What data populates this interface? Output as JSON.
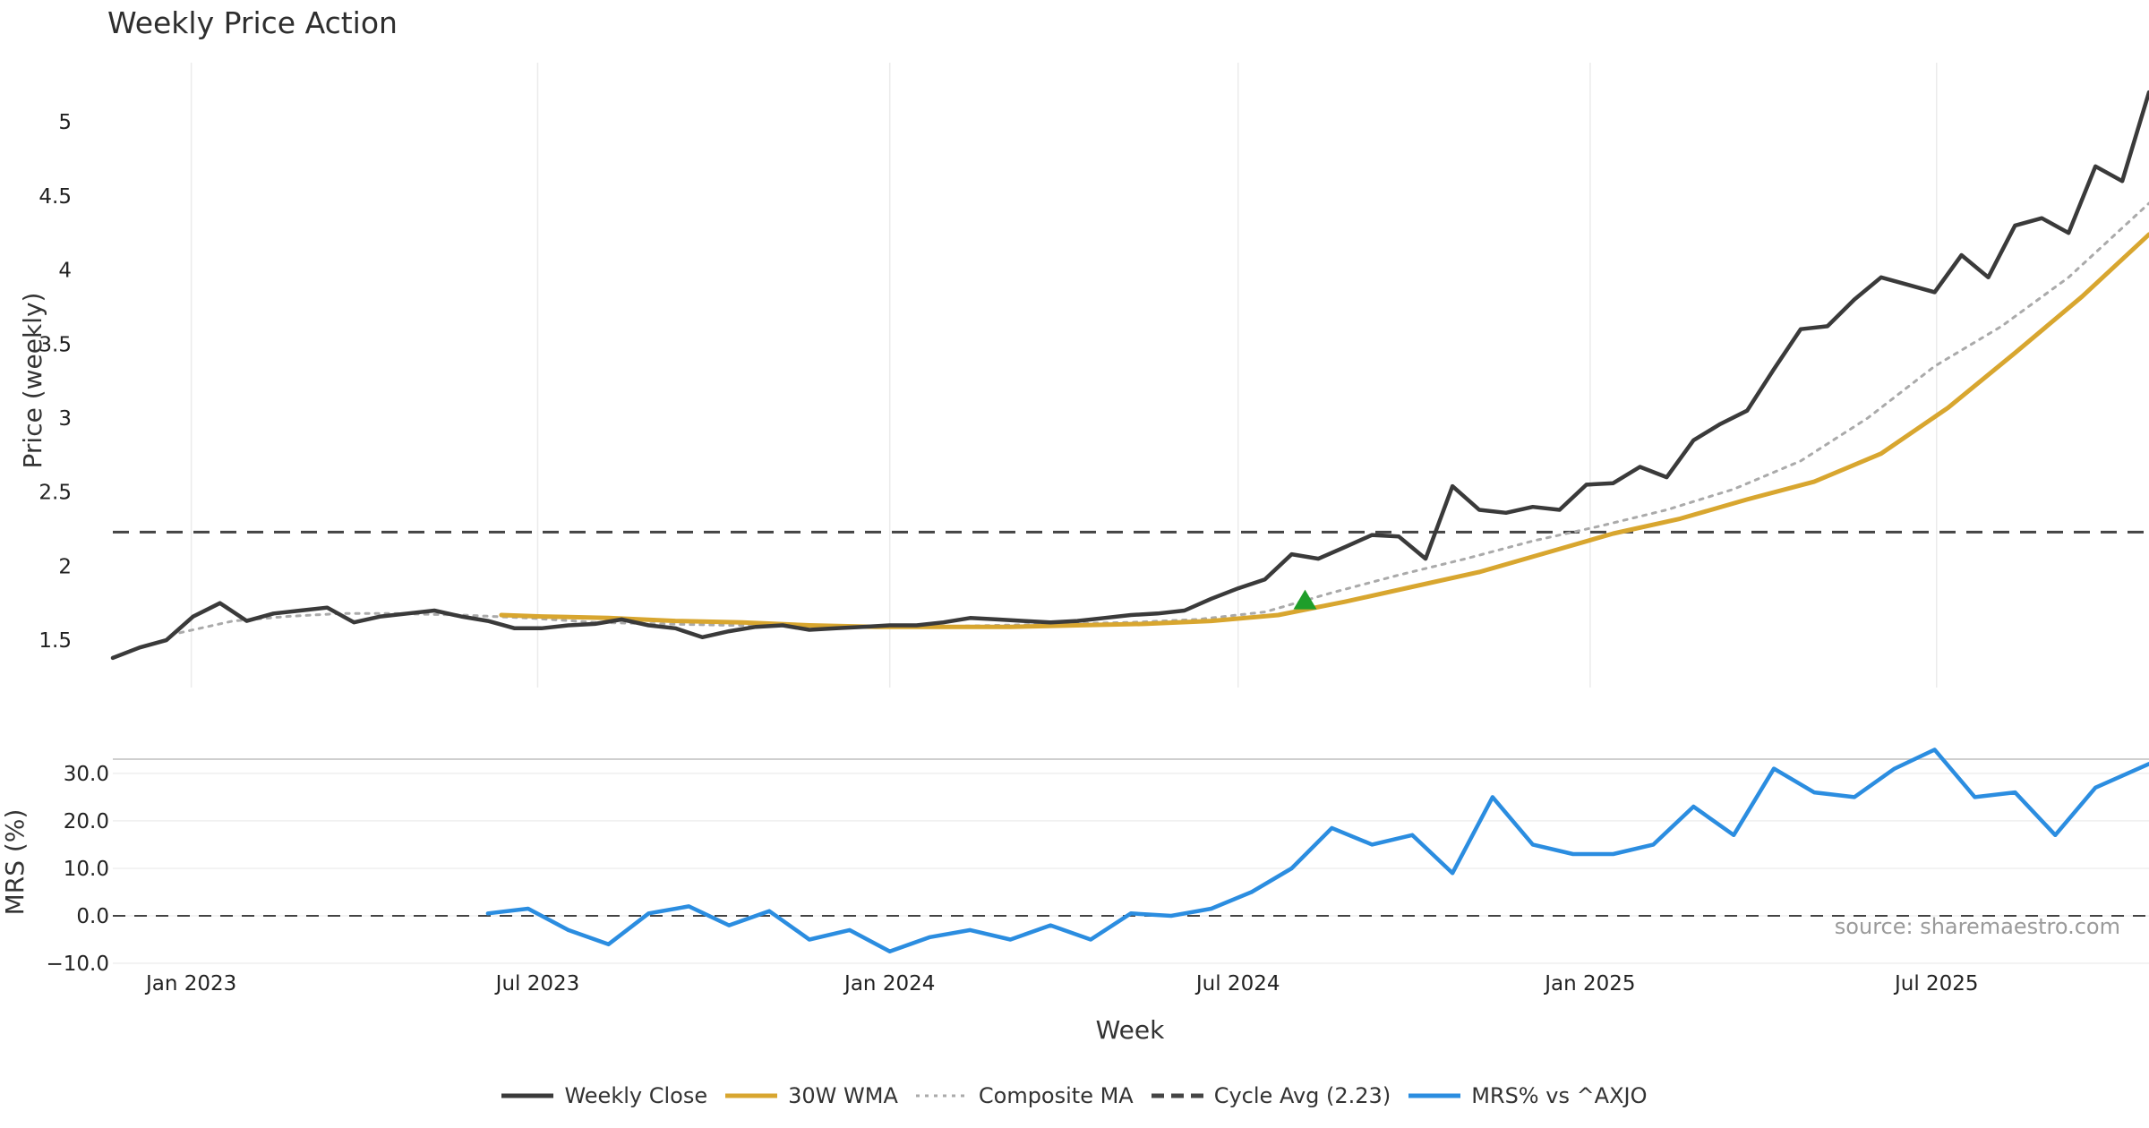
{
  "chart_data": {
    "type": "line",
    "title": "Weekly Price Action",
    "source_note": "source: sharemaestro.com",
    "x_axis": {
      "label": "Week",
      "start_date": "2022-11-21",
      "end_date": "2025-10-20",
      "ticks": [
        {
          "date": "2023-01-01",
          "label": "Jan 2023"
        },
        {
          "date": "2023-07-01",
          "label": "Jul 2023"
        },
        {
          "date": "2024-01-01",
          "label": "Jan 2024"
        },
        {
          "date": "2024-07-01",
          "label": "Jul 2024"
        },
        {
          "date": "2025-01-01",
          "label": "Jan 2025"
        },
        {
          "date": "2025-07-01",
          "label": "Jul 2025"
        }
      ]
    },
    "price_panel": {
      "ylabel": "Price (weekly)",
      "ylim": [
        1.18,
        5.4
      ],
      "ticks": [
        {
          "value": 1.5,
          "label": "1.5"
        },
        {
          "value": 2,
          "label": "2"
        },
        {
          "value": 2.5,
          "label": "2.5"
        },
        {
          "value": 3,
          "label": "3"
        },
        {
          "value": 3.5,
          "label": "3.5"
        },
        {
          "value": 4,
          "label": "4"
        },
        {
          "value": 4.5,
          "label": "4.5"
        },
        {
          "value": 5,
          "label": "5"
        }
      ],
      "grid": "vertical"
    },
    "mrs_panel": {
      "ylabel": "MRS (%)",
      "ylim": [
        -10,
        33
      ],
      "ticks": [
        {
          "value": -10,
          "label": "−10.0"
        },
        {
          "value": 0,
          "label": "0.0"
        },
        {
          "value": 10,
          "label": "10.0"
        },
        {
          "value": 20,
          "label": "20.0"
        },
        {
          "value": 30,
          "label": "30.0"
        }
      ],
      "zero_line": 0
    },
    "series": [
      {
        "name": "Weekly Close",
        "panel": "price",
        "color": "#3a3a3a",
        "style": "solid",
        "x": [
          "2022-11-21",
          "2022-12-05",
          "2022-12-19",
          "2023-01-02",
          "2023-01-16",
          "2023-01-30",
          "2023-02-13",
          "2023-02-27",
          "2023-03-13",
          "2023-03-27",
          "2023-04-10",
          "2023-04-24",
          "2023-05-08",
          "2023-05-22",
          "2023-06-05",
          "2023-06-19",
          "2023-07-03",
          "2023-07-17",
          "2023-07-31",
          "2023-08-14",
          "2023-08-28",
          "2023-09-11",
          "2023-09-25",
          "2023-10-09",
          "2023-10-23",
          "2023-11-06",
          "2023-11-20",
          "2023-12-04",
          "2023-12-18",
          "2024-01-01",
          "2024-01-15",
          "2024-01-29",
          "2024-02-12",
          "2024-02-26",
          "2024-03-11",
          "2024-03-25",
          "2024-04-08",
          "2024-04-22",
          "2024-05-06",
          "2024-05-20",
          "2024-06-03",
          "2024-06-17",
          "2024-07-01",
          "2024-07-15",
          "2024-07-29",
          "2024-08-12",
          "2024-08-26",
          "2024-09-09",
          "2024-09-23",
          "2024-10-07",
          "2024-10-21",
          "2024-11-04",
          "2024-11-18",
          "2024-12-02",
          "2024-12-16",
          "2024-12-30",
          "2025-01-13",
          "2025-01-27",
          "2025-02-10",
          "2025-02-24",
          "2025-03-10",
          "2025-03-24",
          "2025-04-07",
          "2025-04-21",
          "2025-05-05",
          "2025-05-19",
          "2025-06-02",
          "2025-06-16",
          "2025-06-30",
          "2025-07-14",
          "2025-07-28",
          "2025-08-11",
          "2025-08-25",
          "2025-09-08",
          "2025-09-22",
          "2025-10-06",
          "2025-10-20"
        ],
        "y": [
          1.38,
          1.45,
          1.5,
          1.66,
          1.75,
          1.63,
          1.68,
          1.7,
          1.72,
          1.62,
          1.66,
          1.68,
          1.7,
          1.66,
          1.63,
          1.58,
          1.58,
          1.6,
          1.61,
          1.64,
          1.6,
          1.58,
          1.52,
          1.56,
          1.59,
          1.6,
          1.57,
          1.58,
          1.59,
          1.6,
          1.6,
          1.62,
          1.65,
          1.64,
          1.63,
          1.62,
          1.63,
          1.65,
          1.67,
          1.68,
          1.7,
          1.78,
          1.85,
          1.91,
          2.08,
          2.05,
          2.13,
          2.21,
          2.2,
          2.05,
          2.54,
          2.38,
          2.36,
          2.4,
          2.38,
          2.55,
          2.56,
          2.67,
          2.6,
          2.85,
          2.96,
          3.05,
          3.33,
          3.6,
          3.62,
          3.8,
          3.95,
          3.9,
          3.85,
          4.1,
          3.95,
          4.3,
          4.35,
          4.25,
          4.7,
          4.6,
          5.2
        ]
      },
      {
        "name": "30W WMA",
        "panel": "price",
        "color": "#d8a62f",
        "style": "solid",
        "x": [
          "2023-06-12",
          "2023-07-03",
          "2023-08-07",
          "2023-09-11",
          "2023-10-16",
          "2023-11-20",
          "2023-12-25",
          "2024-01-29",
          "2024-03-04",
          "2024-04-08",
          "2024-05-13",
          "2024-06-17",
          "2024-07-22",
          "2024-08-26",
          "2024-09-30",
          "2024-11-04",
          "2024-12-09",
          "2025-01-13",
          "2025-02-17",
          "2025-03-24",
          "2025-04-28",
          "2025-06-02",
          "2025-07-07",
          "2025-08-11",
          "2025-09-15",
          "2025-10-20"
        ],
        "y": [
          1.67,
          1.66,
          1.65,
          1.63,
          1.62,
          1.6,
          1.59,
          1.59,
          1.59,
          1.6,
          1.61,
          1.63,
          1.67,
          1.76,
          1.86,
          1.96,
          2.09,
          2.22,
          2.32,
          2.45,
          2.57,
          2.76,
          3.07,
          3.44,
          3.82,
          4.24
        ]
      },
      {
        "name": "Composite MA",
        "panel": "price",
        "color": "#aaaaaa",
        "style": "dotted",
        "x": [
          "2022-12-26",
          "2023-01-23",
          "2023-02-20",
          "2023-03-20",
          "2023-04-17",
          "2023-05-22",
          "2023-06-26",
          "2023-07-31",
          "2023-09-04",
          "2023-10-09",
          "2023-11-13",
          "2023-12-18",
          "2024-01-22",
          "2024-02-26",
          "2024-04-01",
          "2024-05-06",
          "2024-06-10",
          "2024-07-15",
          "2024-08-19",
          "2024-09-23",
          "2024-10-28",
          "2024-12-02",
          "2025-01-06",
          "2025-02-10",
          "2025-03-17",
          "2025-04-21",
          "2025-05-26",
          "2025-06-30",
          "2025-08-04",
          "2025-09-08",
          "2025-10-20"
        ],
        "y": [
          1.55,
          1.63,
          1.66,
          1.68,
          1.68,
          1.67,
          1.65,
          1.62,
          1.61,
          1.6,
          1.6,
          1.59,
          1.59,
          1.6,
          1.61,
          1.62,
          1.64,
          1.69,
          1.82,
          1.94,
          2.05,
          2.17,
          2.27,
          2.38,
          2.52,
          2.71,
          3.0,
          3.35,
          3.62,
          3.95,
          4.45
        ]
      },
      {
        "name": "Cycle Avg (2.23)",
        "panel": "price",
        "color": "#444444",
        "style": "dashed",
        "constant": 2.23
      },
      {
        "name": "MRS% vs ^AXJO",
        "panel": "mrs",
        "color": "#2b8de0",
        "style": "solid",
        "x": [
          "2023-06-05",
          "2023-06-26",
          "2023-07-17",
          "2023-08-07",
          "2023-08-28",
          "2023-09-18",
          "2023-10-09",
          "2023-10-30",
          "2023-11-20",
          "2023-12-11",
          "2024-01-01",
          "2024-01-22",
          "2024-02-12",
          "2024-03-04",
          "2024-03-25",
          "2024-04-15",
          "2024-05-06",
          "2024-05-27",
          "2024-06-17",
          "2024-07-08",
          "2024-07-29",
          "2024-08-19",
          "2024-09-09",
          "2024-09-30",
          "2024-10-21",
          "2024-11-11",
          "2024-12-02",
          "2024-12-23",
          "2025-01-13",
          "2025-02-03",
          "2025-02-24",
          "2025-03-17",
          "2025-04-07",
          "2025-04-28",
          "2025-05-19",
          "2025-06-09",
          "2025-06-30",
          "2025-07-21",
          "2025-08-11",
          "2025-09-01",
          "2025-09-22",
          "2025-10-20"
        ],
        "y": [
          0.5,
          1.5,
          -3.0,
          -6.0,
          0.5,
          2.0,
          -2.0,
          1.0,
          -5.0,
          -3.0,
          -7.5,
          -4.5,
          -3.0,
          -5.0,
          -2.0,
          -5.0,
          0.5,
          0.0,
          1.5,
          5.0,
          10.0,
          18.5,
          15.0,
          17.0,
          9.0,
          25.0,
          15.0,
          13.0,
          13.0,
          15.0,
          23.0,
          17.0,
          31.0,
          26.0,
          25.0,
          31.0,
          35.0,
          25.0,
          26.0,
          17.0,
          27.0,
          32.0
        ]
      }
    ],
    "markers": [
      {
        "type": "triangle-up",
        "panel": "price",
        "date": "2024-08-05",
        "value": 1.72,
        "color": "#1f9e2a"
      }
    ],
    "legend": {
      "placement": "bottom-center",
      "entries": [
        {
          "label": "Weekly Close",
          "color": "#3a3a3a",
          "style": "solid"
        },
        {
          "label": "30W WMA",
          "color": "#d8a62f",
          "style": "solid"
        },
        {
          "label": "Composite MA",
          "color": "#aaaaaa",
          "style": "dotted"
        },
        {
          "label": "Cycle Avg (2.23)",
          "color": "#444444",
          "style": "dashed"
        },
        {
          "label": "MRS% vs ^AXJO",
          "color": "#2b8de0",
          "style": "solid"
        }
      ]
    }
  }
}
